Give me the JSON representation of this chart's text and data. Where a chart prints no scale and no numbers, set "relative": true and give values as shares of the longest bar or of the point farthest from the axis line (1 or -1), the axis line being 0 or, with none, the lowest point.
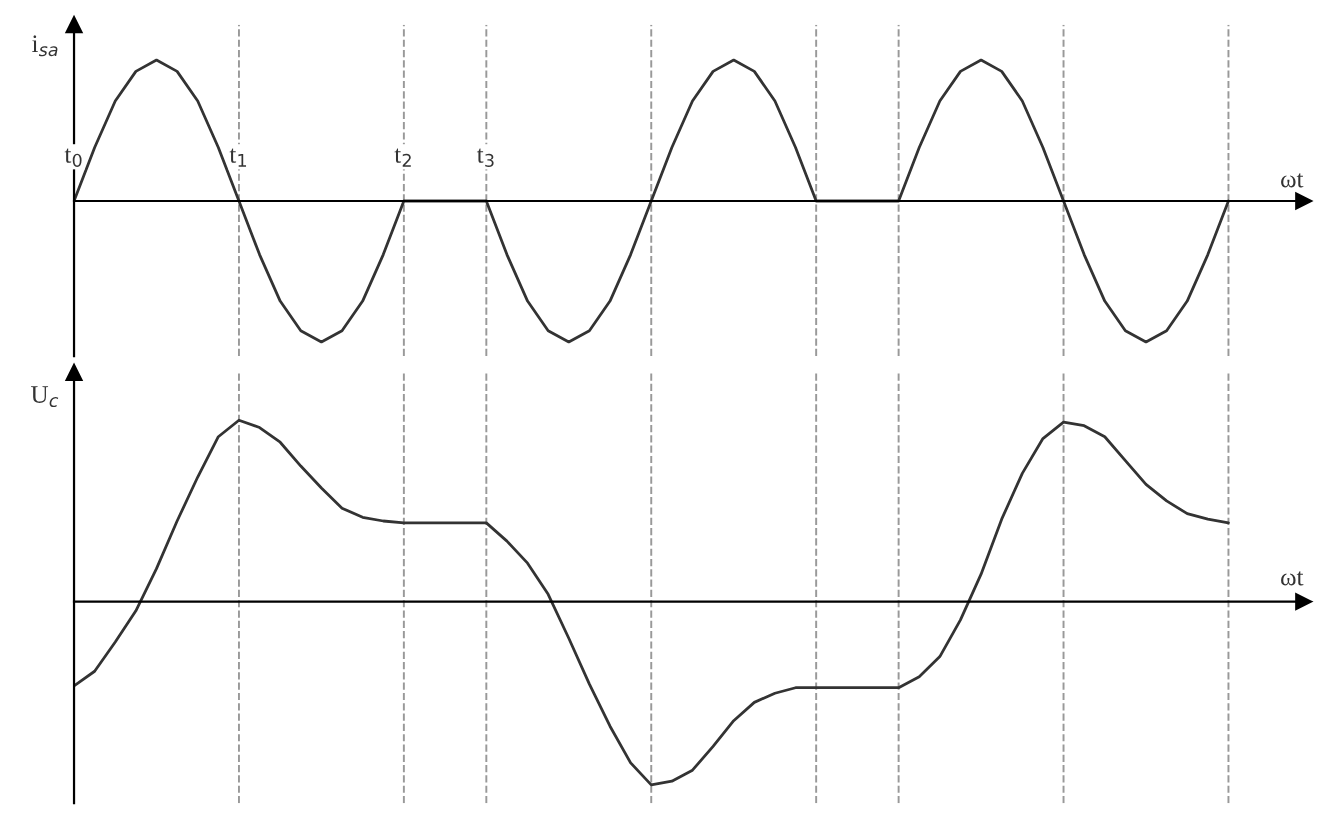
{
  "chart_data": [
    {
      "type": "line",
      "relative": true,
      "ylabel": "i$_{sa}$",
      "xlabel": "ωt",
      "tick_labels": "x",
      "line_style": "solid",
      "categories": [
        "t$_{0}$",
        null,
        null,
        null,
        null,
        null,
        null,
        null,
        "t$_{1}$",
        null,
        null,
        null,
        null,
        null,
        null,
        null,
        "t$_{2}$",
        null,
        null,
        null,
        "t$_{3}$",
        null,
        null,
        null,
        null,
        null,
        null,
        null,
        null,
        null,
        null,
        null,
        null,
        null,
        null,
        null,
        null,
        null,
        null,
        null,
        null,
        null,
        null,
        null,
        null,
        null,
        null,
        null,
        null,
        null,
        null,
        null,
        null,
        null,
        null,
        null,
        null
      ],
      "grid": "x",
      "series": [
        {
          "color": "#333333",
          "values": [
            0,
            0.38,
            0.71,
            0.92,
            1,
            0.92,
            0.71,
            0.38,
            0,
            -0.38,
            -0.71,
            -0.92,
            -1,
            -0.92,
            -0.71,
            -0.38,
            0,
            0,
            0,
            0,
            0,
            -0.38,
            -0.71,
            -0.92,
            -1,
            -0.92,
            -0.71,
            -0.38,
            0,
            0.38,
            0.71,
            0.92,
            1,
            0.92,
            0.71,
            0.38,
            0,
            0,
            0,
            0,
            0,
            0.38,
            0.71,
            0.92,
            1,
            0.92,
            0.71,
            0.38,
            0,
            -0.38,
            -0.71,
            -0.92,
            -1,
            -0.92,
            -0.71,
            -0.38,
            0
          ]
        }
      ]
    },
    {
      "type": "line",
      "relative": true,
      "ylabel": "U$_{c}$",
      "xlabel": "ωt",
      "tick_labels": false,
      "line_style": "solid",
      "grid": "x",
      "categories": [
        null,
        null,
        null,
        null,
        null,
        null,
        null,
        null,
        null,
        null,
        null,
        null,
        null,
        null,
        null,
        null,
        null,
        null,
        null,
        null,
        null,
        null,
        null,
        null,
        null,
        null,
        null,
        null,
        null,
        null,
        null,
        null,
        null,
        null,
        null,
        null,
        null,
        null,
        null,
        null,
        null,
        null,
        null,
        null,
        null,
        null,
        null,
        null,
        null,
        null,
        null,
        null,
        null,
        null,
        null,
        null,
        null
      ],
      "series": [
        {
          "color": "#333333",
          "values": [
            -0.46,
            -0.38,
            -0.22,
            -0.05,
            0.18,
            0.44,
            0.68,
            0.9,
            0.99,
            0.95,
            0.87,
            0.74,
            0.62,
            0.51,
            0.46,
            0.44,
            0.43,
            0.43,
            0.43,
            0.43,
            0.43,
            0.33,
            0.21,
            0.04,
            -0.2,
            -0.45,
            -0.68,
            -0.88,
            -1,
            -0.98,
            -0.92,
            -0.79,
            -0.65,
            -0.55,
            -0.5,
            -0.47,
            -0.47,
            -0.47,
            -0.47,
            -0.47,
            -0.47,
            -0.41,
            -0.3,
            -0.1,
            0.15,
            0.45,
            0.7,
            0.89,
            0.98,
            0.96,
            0.9,
            0.77,
            0.64,
            0.55,
            0.48,
            0.45,
            0.43
          ]
        }
      ]
    }
  ]
}
